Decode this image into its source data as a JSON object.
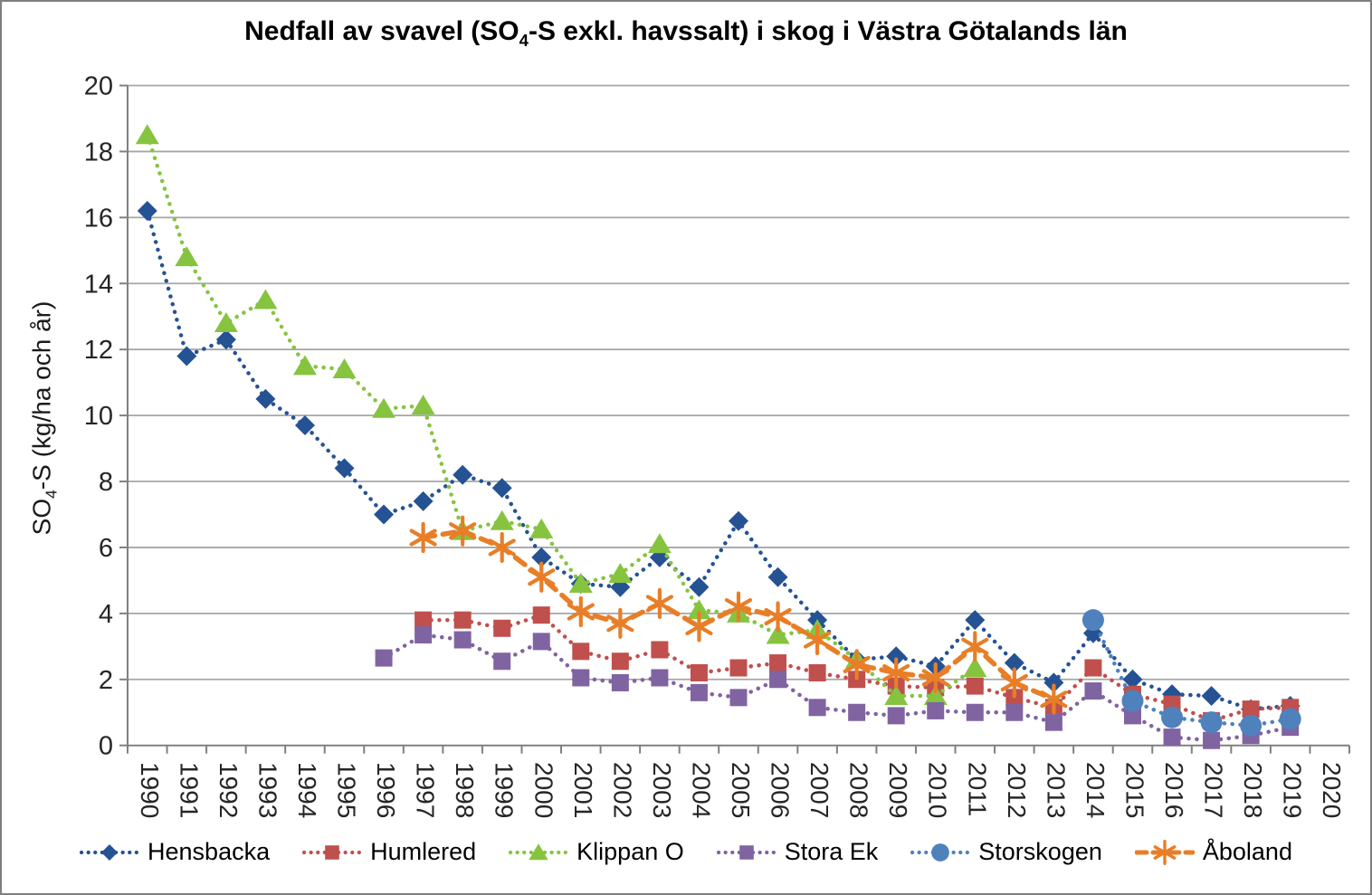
{
  "chart_data": {
    "type": "line",
    "title": {
      "prefix": "Nedfall av svavel (SO",
      "subscript": "4",
      "suffix": "-S exkl. havssalt) i skog i Västra Götalands län"
    },
    "ylabel": {
      "prefix": "SO",
      "subscript": "4",
      "suffix": "-S (kg/ha och år)"
    },
    "categories": [
      "1990",
      "1991",
      "1992",
      "1993",
      "1994",
      "1995",
      "1996",
      "1997",
      "1998",
      "1999",
      "2000",
      "2001",
      "2002",
      "2003",
      "2004",
      "2005",
      "2006",
      "2007",
      "2008",
      "2009",
      "2010",
      "2011",
      "2012",
      "2013",
      "2014",
      "2015",
      "2016",
      "2017",
      "2018",
      "2019",
      "2020"
    ],
    "ylim": [
      0,
      20
    ],
    "ytick_step": 2,
    "grid": "horizontal",
    "legend_position": "bottom",
    "style": {
      "frame_border_color": "#7f7f7f",
      "gridline_color": "#a6a6a6",
      "axis_color": "#808080",
      "tick_label_color": "#262626",
      "background": "#ffffff"
    },
    "series": [
      {
        "name": "Hensbacka",
        "color": "#255293",
        "marker": "diamond",
        "line_style": "dotted",
        "values": [
          16.2,
          11.8,
          12.3,
          10.5,
          9.7,
          8.4,
          7.0,
          7.4,
          8.2,
          7.8,
          5.7,
          4.9,
          4.8,
          5.7,
          4.8,
          6.8,
          5.1,
          3.8,
          2.6,
          2.7,
          2.4,
          3.8,
          2.5,
          1.9,
          3.4,
          2.0,
          1.55,
          1.5,
          1.1,
          1.2,
          null
        ]
      },
      {
        "name": "Humlered",
        "color": "#c0504d",
        "marker": "square",
        "line_style": "dotted",
        "values": [
          null,
          null,
          null,
          null,
          null,
          null,
          null,
          3.8,
          3.8,
          3.55,
          3.95,
          2.85,
          2.55,
          2.9,
          2.2,
          2.35,
          2.5,
          2.2,
          2.0,
          1.8,
          1.75,
          1.8,
          1.45,
          1.15,
          2.35,
          1.55,
          1.25,
          0.75,
          1.1,
          1.15,
          null
        ]
      },
      {
        "name": "Klippan O",
        "color": "#86c440",
        "marker": "triangle",
        "line_style": "dotted",
        "values": [
          18.5,
          14.8,
          12.8,
          13.5,
          11.5,
          11.4,
          10.2,
          10.3,
          6.5,
          6.8,
          6.55,
          4.9,
          5.2,
          6.1,
          4.1,
          4.0,
          3.35,
          3.5,
          2.6,
          1.5,
          1.5,
          2.35,
          null,
          null,
          null,
          null,
          null,
          null,
          null,
          null,
          null
        ]
      },
      {
        "name": "Stora Ek",
        "color": "#8064a2",
        "marker": "square",
        "line_style": "dotted",
        "values": [
          null,
          null,
          null,
          null,
          null,
          null,
          2.65,
          3.35,
          3.2,
          2.55,
          3.15,
          2.05,
          1.9,
          2.05,
          1.6,
          1.45,
          2.0,
          1.15,
          1.0,
          0.9,
          1.05,
          1.0,
          1.0,
          0.7,
          1.65,
          0.9,
          0.25,
          0.15,
          0.3,
          0.55,
          null
        ]
      },
      {
        "name": "Storskogen",
        "color": "#4f81bd",
        "marker": "circle",
        "line_style": "dotted",
        "values": [
          null,
          null,
          null,
          null,
          null,
          null,
          null,
          null,
          null,
          null,
          null,
          null,
          null,
          null,
          null,
          null,
          null,
          null,
          null,
          null,
          null,
          null,
          null,
          null,
          3.8,
          1.35,
          0.85,
          0.7,
          0.6,
          0.8,
          null
        ]
      },
      {
        "name": "Åboland",
        "color": "#e87e27",
        "marker": "asterisk",
        "line_style": "dashed",
        "values": [
          null,
          null,
          null,
          null,
          null,
          null,
          null,
          6.3,
          6.5,
          6.0,
          5.1,
          4.05,
          3.7,
          4.3,
          3.6,
          4.2,
          3.9,
          3.2,
          2.45,
          2.2,
          2.05,
          3.0,
          1.9,
          1.4,
          null,
          null,
          null,
          null,
          null,
          null,
          null
        ]
      }
    ]
  }
}
